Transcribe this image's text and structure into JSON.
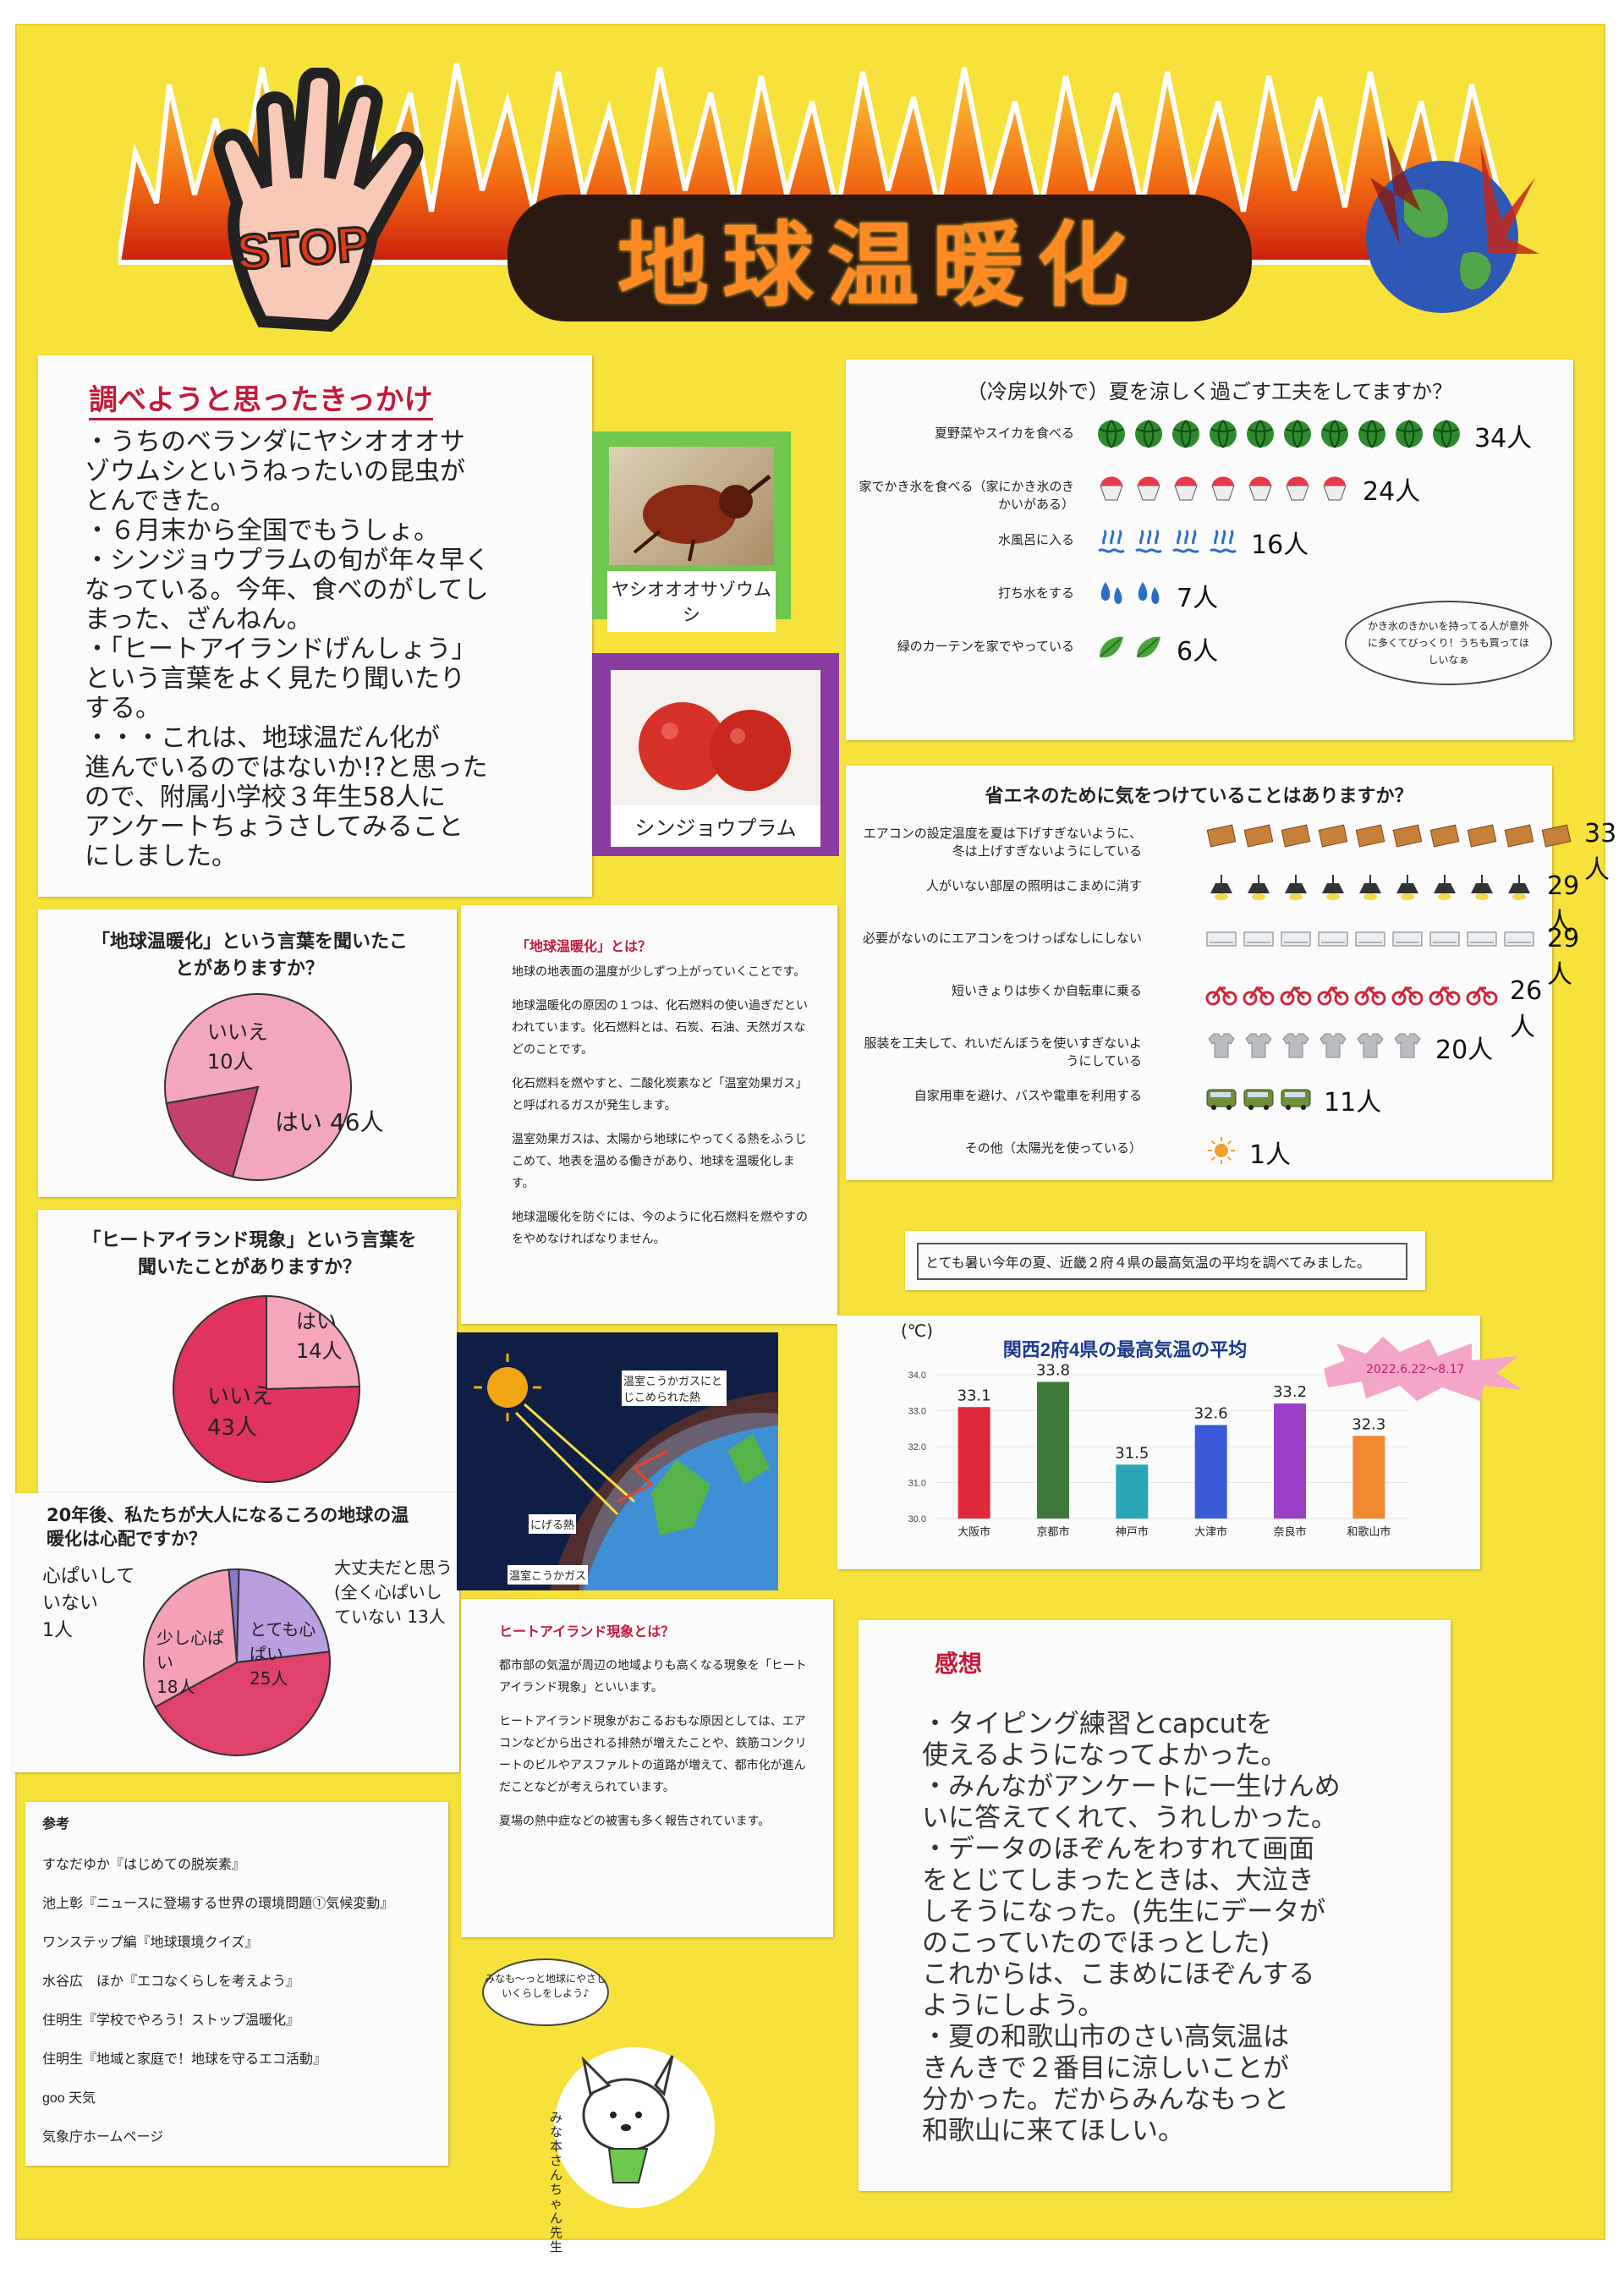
{
  "header": {
    "stop_label": "STOP",
    "title": "地球温暖化"
  },
  "motivation": {
    "heading": "調べようと思ったきっかけ",
    "lines": [
      "・うちのベランダにヤシオオオサ",
      "ゾウムシというねったいの昆虫が",
      "とんできた。",
      "・６月末から全国でもうしょ。",
      "・シンジョウプラムの旬が年々早く",
      "なっている。今年、食べのがしてし",
      "まった、ざんねん。",
      "・「ヒートアイランドげんしょう」",
      "という言葉をよく見たり聞いたり",
      "する。",
      "・・・これは、地球温だん化が",
      "進んでいるのではないか!?と思った",
      "ので、附属小学校３年生58人に",
      "アンケートちょうさしてみること",
      "にしました。"
    ]
  },
  "photos": {
    "beetle_caption": "ヤシオオオサゾウムシ",
    "plum_caption": "シンジョウプラム"
  },
  "pie1": {
    "title": "「地球温暖化」という言葉を聞いたことがありますか？",
    "slices": [
      {
        "label": "はい",
        "count": "46人",
        "value": 46,
        "color": "#f3a7bd"
      },
      {
        "label": "いいえ",
        "count": "10人",
        "value": 10,
        "color": "#c4416d"
      }
    ]
  },
  "pie2": {
    "title": "「ヒートアイランド現象」という言葉を聞いたことがありますか？",
    "slices": [
      {
        "label": "はい",
        "count": "14人",
        "value": 14,
        "color": "#f5a6b9"
      },
      {
        "label": "いいえ",
        "count": "43人",
        "value": 43,
        "color": "#e0345e"
      }
    ]
  },
  "pie3": {
    "title": "20年後、私たちが大人になるころの地球の温暖化は心配ですか？",
    "slices": [
      {
        "label": "とても心配",
        "count": "25人",
        "value": 25,
        "color": "#e0426b"
      },
      {
        "label": "少し心配",
        "count": "18人",
        "value": 18,
        "color": "#f4a1b6"
      },
      {
        "label": "心配していない",
        "count": "1人",
        "value": 1,
        "color": "#8a78c8"
      },
      {
        "label": "大丈夫だと思う（全く心配していない）",
        "count": "13人",
        "value": 13,
        "color": "#b99ee0"
      }
    ],
    "outside_labels": {
      "not_worried": "心ぱいしていない",
      "not_worried_count": "1人",
      "fine": "大丈夫だと思う",
      "fine_sub": "(全く心ぱいしていない",
      "fine_count": "13人",
      "bit": "少し心ぱい",
      "bit_count": "18人",
      "very": "とても心ぱい",
      "very_count": "25人"
    }
  },
  "warming_info": {
    "heading": "「地球温暖化」とは？",
    "paragraphs": [
      "地球の地表面の温度が少しずつ上がっていくことです。",
      "地球温暖化の原因の１つは、化石燃料の使い過ぎだといわれています。化石燃料とは、石炭、石油、天然ガスなどのことです。",
      "化石燃料を燃やすと、二酸化炭素など「温室効果ガス」と呼ばれるガスが発生します。",
      "温室効果ガスは、太陽から地球にやってくる熱をふうじこめて、地表を温める働きがあり、地球を温暖化します。",
      "地球温暖化を防ぐには、今のように化石燃料を燃やすのをやめなければなりません。"
    ]
  },
  "earth_diagram": {
    "trapped_label": "温室こうかガスにとじこめられた熱",
    "escaped_label": "にげる熱",
    "gas_label": "温室こうかガス"
  },
  "heat_island_info": {
    "heading": "ヒートアイランド現象とは？",
    "paragraphs": [
      "都市部の気温が周辺の地域よりも高くなる現象を「ヒートアイランド現象」といいます。",
      "ヒートアイランド現象がおこるおもな原因としては、エアコンなどから出される排熱が増えたことや、鉄筋コンクリートのビルやアスファルトの道路が増えて、都市化が進んだことなどが考えられています。",
      "夏場の熱中症などの被害も多く報告されています。"
    ]
  },
  "references": {
    "heading": "参考",
    "items": [
      "すなだゆか『はじめての脱炭素』",
      "池上彰『ニュースに登場する世界の環境問題①気候変動』",
      "ワンステップ編『地球環境クイズ』",
      "水谷広　ほか『エコなくらしを考えよう』",
      "住明生『学校でやろう！ストップ温暖化』",
      "住明生『地域と家庭で！地球を守るエコ活動』",
      "goo 天気",
      "気象庁ホームページ"
    ]
  },
  "mascot": {
    "speech": "みなも〜っと地球にやさしいくらしをしよう♪",
    "name": "みな本さんちゃん先生"
  },
  "cool_survey": {
    "title": "（冷房以外で）夏を涼しく過ごす工夫をしてますか？",
    "rows": [
      {
        "label": "夏野菜やスイカを食べる",
        "count": "34人",
        "icons": 10,
        "icon": "watermelon-icon"
      },
      {
        "label": "家でかき氷を食べる（家にかき氷のきかいがある）",
        "count": "24人",
        "icons": 7,
        "icon": "shaved-ice-icon"
      },
      {
        "label": "水風呂に入る",
        "count": "16人",
        "icons": 4,
        "icon": "bath-icon"
      },
      {
        "label": "打ち水をする",
        "count": "7人",
        "icons": 2,
        "icon": "water-drop-icon"
      },
      {
        "label": "緑のカーテンを家でやっている",
        "count": "6人",
        "icons": 2,
        "icon": "leaf-icon"
      }
    ],
    "note": "かき氷のきかいを持ってる人が意外に多くてびっくり！うちも買ってほしいなぁ"
  },
  "eco_survey": {
    "title": "省エネのために気をつけていることはありますか？",
    "rows": [
      {
        "label": "エアコンの設定温度を夏は下げすぎないように、冬は上げすぎないようにしている",
        "count": "33人",
        "icons": 10,
        "icon": "thermostat-icon"
      },
      {
        "label": "人がいない部屋の照明はこまめに消す",
        "count": "29人",
        "icons": 9,
        "icon": "lamp-icon"
      },
      {
        "label": "必要がないのにエアコンをつけっぱなしにしない",
        "count": "29人",
        "icons": 9,
        "icon": "air-conditioner-icon"
      },
      {
        "label": "短いきょりは歩くか自転車に乗る",
        "count": "26人",
        "icons": 8,
        "icon": "bicycle-icon"
      },
      {
        "label": "服装を工夫して、れいだんぼうを使いすぎないようにしている",
        "count": "20人",
        "icons": 6,
        "icon": "tshirt-icon"
      },
      {
        "label": "自家用車を避け、バスや電車を利用する",
        "count": "11人",
        "icons": 3,
        "icon": "bus-icon"
      },
      {
        "label": "その他（太陽光を使っている）",
        "count": "1人",
        "icons": 1,
        "icon": "sun-icon"
      }
    ]
  },
  "temp_intro": "とても暑い今年の夏、近畿２府４県の最高気温の平均を調べてみました。",
  "chart_data": {
    "type": "bar",
    "title": "関西2府4県の最高気温の平均",
    "ylabel": "(℃)",
    "badge": "2022.6.22〜8.17",
    "categories": [
      "大阪市",
      "京都市",
      "神戸市",
      "大津市",
      "奈良市",
      "和歌山市"
    ],
    "values": [
      33.1,
      33.8,
      31.5,
      32.6,
      33.2,
      32.3
    ],
    "value_labels": [
      "33.1",
      "33.8",
      "31.5",
      "32.6",
      "33.2",
      "32.3"
    ],
    "colors": [
      "#e0283a",
      "#3f7a3a",
      "#2aa5b5",
      "#3b5bd6",
      "#9b3fc9",
      "#f08a30"
    ],
    "ylim": [
      30.0,
      34.0
    ],
    "yticks": [
      "30.0",
      "31.0",
      "32.0",
      "33.0",
      "34.0"
    ]
  },
  "impressions": {
    "heading": "感想",
    "lines": [
      "・タイピング練習とcapcutを",
      "使えるようになってよかった。",
      "・みんながアンケートに一生けんめ",
      "いに答えてくれて、うれしかった。",
      "・データのほぞんをわすれて画面",
      "をとじてしまったときは、大泣き",
      "しそうになった。(先生にデータが",
      "のこっていたのでほっとした)",
      "これからは、こまめにほぞんする",
      "ようにしよう。",
      "・夏の和歌山市のさい高気温は",
      "きんきで２番目に涼しいことが",
      "分かった。だからみんなもっと",
      "和歌山に来てほしい。"
    ]
  }
}
